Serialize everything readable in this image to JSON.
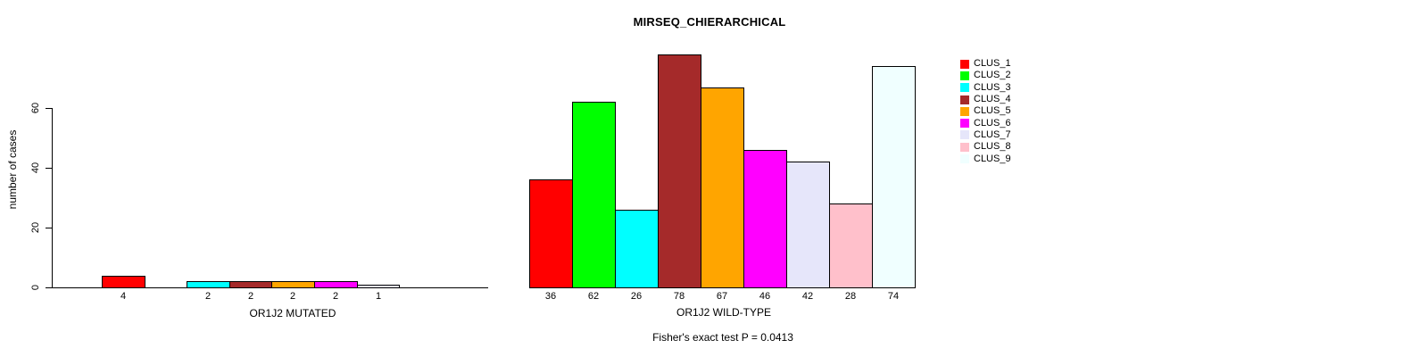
{
  "chart_data": {
    "type": "bar",
    "title": "MIRSEQ_CHIERARCHICAL",
    "ylabel": "number of cases",
    "footer": "Fisher's exact test P = 0.0413",
    "ylim": [
      0,
      80
    ],
    "yticks": [
      0,
      20,
      40,
      60
    ],
    "grid": false,
    "legend_position": "right",
    "clusters": [
      "CLUS_1",
      "CLUS_2",
      "CLUS_3",
      "CLUS_4",
      "CLUS_5",
      "CLUS_6",
      "CLUS_7",
      "CLUS_8",
      "CLUS_9"
    ],
    "colors": [
      "#FF0000",
      "#00FF00",
      "#00FFFF",
      "#A52A2A",
      "#FFA500",
      "#FF00FF",
      "#E6E6FA",
      "#FFC0CB",
      "#F0FFFF"
    ],
    "groups": [
      {
        "xlabel": "OR1J2 MUTATED",
        "values": [
          4,
          0,
          2,
          2,
          2,
          2,
          1,
          0,
          0
        ]
      },
      {
        "xlabel": "OR1J2 WILD-TYPE",
        "values": [
          36,
          62,
          26,
          78,
          67,
          46,
          42,
          28,
          74
        ]
      }
    ]
  }
}
